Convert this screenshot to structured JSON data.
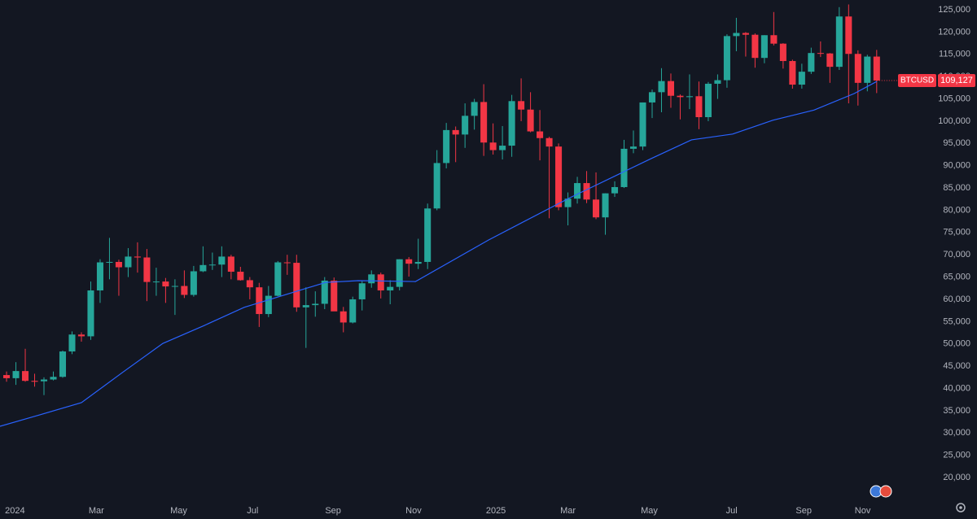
{
  "chart_data": {
    "type": "candlestick",
    "open": [
      43000,
      42300,
      43900,
      41700,
      41600,
      42000,
      42600,
      48300,
      52100,
      51700,
      62000,
      68300,
      68400,
      67200,
      69600,
      69400,
      63900,
      64000,
      62900,
      63000,
      61000,
      66300,
      67700,
      67800,
      69600,
      66200,
      64300,
      62700,
      56700,
      60800,
      68300,
      68200,
      58200,
      58700,
      59000,
      64200,
      57300,
      54800,
      60000,
      63600,
      65600,
      62000,
      62800,
      69000,
      68000,
      68400,
      80400,
      90600,
      98000,
      97000,
      101200,
      104300,
      95200,
      93500,
      94500,
      104500,
      102600,
      97700,
      96200,
      94300,
      80700,
      82600,
      86100,
      82400,
      78400,
      83800,
      85200,
      93800,
      94300,
      104200,
      106500,
      109000,
      105700,
      105400,
      105600,
      100900,
      108400,
      109200,
      119100,
      119800,
      119400,
      114200,
      119300,
      117400,
      113500,
      108200,
      111100,
      115300,
      115200,
      112200,
      123500,
      115100,
      108600,
      114500
    ],
    "high": [
      43800,
      45900,
      48900,
      43300,
      42500,
      43800,
      48500,
      52800,
      52600,
      64000,
      69000,
      73800,
      68900,
      71500,
      72800,
      71300,
      67100,
      64800,
      64500,
      66500,
      67500,
      71900,
      70500,
      71900,
      70000,
      67300,
      65000,
      63700,
      63000,
      68600,
      70000,
      70000,
      62700,
      61800,
      65000,
      64900,
      58300,
      60600,
      64100,
      66500,
      66000,
      64300,
      69000,
      69500,
      73600,
      81500,
      93500,
      99600,
      98800,
      104000,
      105000,
      108300,
      99500,
      98900,
      105900,
      109600,
      106500,
      102500,
      96500,
      95000,
      84000,
      87500,
      88800,
      88500,
      83800,
      86500,
      95800,
      97900,
      104200,
      107100,
      111900,
      110700,
      106000,
      110500,
      108900,
      108800,
      110500,
      119500,
      123200,
      120000,
      119700,
      119300,
      124500,
      117500,
      113800,
      112900,
      116500,
      117900,
      115300,
      125600,
      126200,
      115900,
      114900,
      116000
    ],
    "low": [
      41500,
      40800,
      41500,
      40400,
      38500,
      41800,
      42400,
      47700,
      50500,
      50900,
      59200,
      64500,
      60800,
      65000,
      66000,
      59600,
      60800,
      59200,
      56500,
      60300,
      60600,
      66100,
      66600,
      65000,
      64500,
      64200,
      60000,
      53800,
      56000,
      60700,
      65500,
      57200,
      49100,
      56100,
      57800,
      58000,
      52600,
      54600,
      57500,
      62600,
      60200,
      58900,
      62000,
      65100,
      66800,
      66800,
      80000,
      89400,
      90800,
      94000,
      98100,
      92200,
      92500,
      91400,
      92000,
      100000,
      97500,
      91200,
      78200,
      80000,
      76600,
      81500,
      81600,
      78000,
      74500,
      83000,
      85000,
      92800,
      93500,
      100700,
      102000,
      103000,
      100400,
      102700,
      98200,
      100000,
      105000,
      107500,
      115700,
      114500,
      112000,
      113000,
      117000,
      111800,
      107300,
      107300,
      110600,
      114400,
      108600,
      111500,
      104000,
      103500,
      106700,
      106300
    ],
    "close": [
      42300,
      43900,
      41700,
      41500,
      42000,
      42600,
      48300,
      52100,
      51700,
      62000,
      68300,
      68400,
      67200,
      69600,
      69400,
      63900,
      64000,
      62900,
      63000,
      61000,
      66300,
      67700,
      67800,
      69600,
      66200,
      64300,
      62700,
      56700,
      60800,
      68300,
      68200,
      58200,
      58700,
      59000,
      64200,
      57300,
      54800,
      60000,
      63600,
      65600,
      62000,
      62800,
      69000,
      68000,
      68400,
      80400,
      90600,
      98000,
      97000,
      101200,
      104300,
      95200,
      93500,
      94500,
      104500,
      102600,
      97700,
      96200,
      94300,
      80700,
      82600,
      86100,
      82400,
      78400,
      83800,
      85200,
      93800,
      94300,
      104200,
      106500,
      109000,
      105700,
      105400,
      105600,
      100900,
      108400,
      109200,
      119100,
      119800,
      119400,
      114200,
      119300,
      117400,
      113500,
      108200,
      111100,
      115300,
      115200,
      112200,
      123500,
      115100,
      108600,
      114500,
      109127
    ],
    "up_color": "#26a69a",
    "down_color": "#f23645",
    "ma": {
      "color": "#2962ff",
      "x": [
        -0.7,
        3.6,
        8.0,
        12.4,
        16.7,
        21.1,
        25.4,
        34.1,
        37.6,
        43.7,
        51.5,
        60.2,
        68.9,
        73.2,
        77.6,
        81.9,
        86.3,
        90.6,
        93
      ],
      "values": [
        31500,
        34100,
        36800,
        43600,
        50100,
        54100,
        58200,
        63800,
        64200,
        64000,
        73300,
        82800,
        91600,
        95800,
        97100,
        100200,
        102500,
        106200,
        108900
      ]
    },
    "current_price": {
      "symbol": "BTCUSD",
      "value": 109127,
      "label": "109,127"
    },
    "xlim": [
      -0.7,
      98.5
    ],
    "xticks": [
      {
        "value": 0.9,
        "label": "2024"
      },
      {
        "value": 9.6,
        "label": "Mar"
      },
      {
        "value": 18.4,
        "label": "May"
      },
      {
        "value": 26.3,
        "label": "Jul"
      },
      {
        "value": 34.9,
        "label": "Sep"
      },
      {
        "value": 43.5,
        "label": "Nov"
      },
      {
        "value": 52.3,
        "label": "2025"
      },
      {
        "value": 60.0,
        "label": "Mar"
      },
      {
        "value": 68.7,
        "label": "May"
      },
      {
        "value": 77.5,
        "label": "Jul"
      },
      {
        "value": 85.2,
        "label": "Sep"
      },
      {
        "value": 91.5,
        "label": "Nov"
      }
    ],
    "ylim": [
      15800,
      127200
    ],
    "yticks": [
      {
        "value": 20000,
        "label": "20,000"
      },
      {
        "value": 25000,
        "label": "25,000"
      },
      {
        "value": 30000,
        "label": "30,000"
      },
      {
        "value": 35000,
        "label": "35,000"
      },
      {
        "value": 40000,
        "label": "40,000"
      },
      {
        "value": 45000,
        "label": "45,000"
      },
      {
        "value": 50000,
        "label": "50,000"
      },
      {
        "value": 55000,
        "label": "55,000"
      },
      {
        "value": 60000,
        "label": "60,000"
      },
      {
        "value": 65000,
        "label": "65,000"
      },
      {
        "value": 70000,
        "label": "70,000"
      },
      {
        "value": 75000,
        "label": "75,000"
      },
      {
        "value": 80000,
        "label": "80,000"
      },
      {
        "value": 85000,
        "label": "85,000"
      },
      {
        "value": 90000,
        "label": "90,000"
      },
      {
        "value": 95000,
        "label": "95,000"
      },
      {
        "value": 100000,
        "label": "100,000"
      },
      {
        "value": 105000,
        "label": "105,000"
      },
      {
        "value": 110000,
        "label": "110,000"
      },
      {
        "value": 115000,
        "label": "115,000"
      },
      {
        "value": 120000,
        "label": "120,000"
      },
      {
        "value": 125000,
        "label": "125,000"
      }
    ],
    "grid": false
  }
}
